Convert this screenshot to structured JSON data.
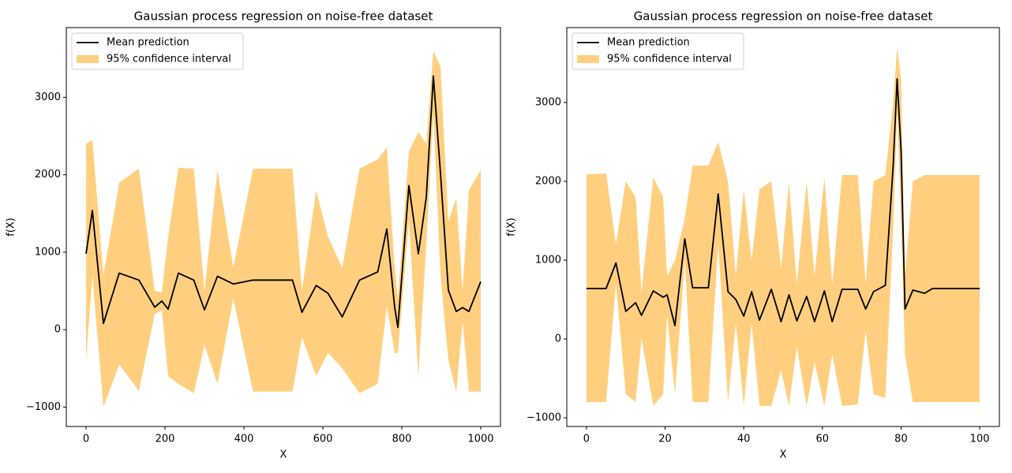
{
  "chart_data": [
    {
      "type": "line",
      "title": "Gaussian process regression on noise-free dataset",
      "x_label": "X",
      "y_label": "f(X)",
      "legend": "upper left",
      "xlim": [
        -50,
        1050
      ],
      "ylim": [
        -1250,
        3900
      ],
      "xticks": [
        0,
        200,
        400,
        600,
        800,
        1000
      ],
      "yticks": [
        {
          "value": -1000,
          "label": "−1000"
        },
        0,
        1000,
        2000,
        3000
      ],
      "x": [
        0,
        16,
        44,
        84,
        134,
        174,
        192,
        208,
        234,
        273,
        300,
        333,
        373,
        423,
        523,
        547,
        583,
        613,
        649,
        693,
        739,
        762,
        782,
        790,
        818,
        842,
        862,
        880,
        898,
        918,
        938,
        954,
        970,
        1000
      ],
      "series": [
        {
          "name": "Mean prediction",
          "color": "#000000",
          "values": [
            980,
            1540,
            80,
            730,
            640,
            290,
            370,
            265,
            730,
            640,
            255,
            690,
            590,
            640,
            640,
            225,
            570,
            470,
            165,
            640,
            745,
            1300,
            285,
            30,
            1860,
            980,
            1710,
            3275,
            2020,
            510,
            235,
            285,
            235,
            620
          ]
        },
        {
          "name": "95% confidence interval",
          "color": "#ffcf7f",
          "upper": [
            2400,
            2450,
            700,
            1900,
            2080,
            500,
            480,
            1200,
            2090,
            2080,
            500,
            2060,
            800,
            2080,
            2080,
            500,
            1800,
            1200,
            800,
            2080,
            2200,
            2350,
            800,
            400,
            2300,
            2550,
            2400,
            3600,
            3400,
            1400,
            1700,
            500,
            1800,
            2060
          ],
          "lower": [
            -400,
            700,
            -1000,
            -450,
            -790,
            200,
            250,
            -600,
            -700,
            -820,
            -200,
            -700,
            400,
            -800,
            -800,
            -100,
            -600,
            -300,
            -500,
            -820,
            -700,
            300,
            -300,
            -300,
            1400,
            -600,
            1100,
            2800,
            700,
            -400,
            -800,
            100,
            -800,
            -800
          ]
        }
      ]
    },
    {
      "type": "line",
      "title": "Gaussian process regression on noise-free dataset",
      "x_label": "X",
      "y_label": "f(X)",
      "legend": "upper left",
      "xlim": [
        -5,
        105
      ],
      "ylim": [
        -1110,
        3950
      ],
      "xticks": [
        0,
        20,
        40,
        60,
        80,
        100
      ],
      "yticks": [
        {
          "value": -1000,
          "label": "−1000"
        },
        0,
        1000,
        2000,
        3000
      ],
      "x": [
        0,
        5,
        7.5,
        10,
        12.5,
        14,
        17,
        19.5,
        20.5,
        22.5,
        25,
        27,
        31,
        33.5,
        36,
        38,
        40,
        42,
        44,
        47,
        49.5,
        51.5,
        53.5,
        56,
        58,
        60.5,
        62.5,
        65,
        69,
        71,
        73,
        76,
        78,
        79,
        80,
        81,
        83,
        86,
        88,
        100
      ],
      "series": [
        {
          "name": "Mean prediction",
          "color": "#000000",
          "values": [
            640,
            640,
            965,
            350,
            460,
            300,
            610,
            530,
            560,
            170,
            1270,
            650,
            650,
            1840,
            600,
            500,
            290,
            600,
            240,
            630,
            220,
            560,
            230,
            540,
            220,
            610,
            220,
            630,
            630,
            380,
            600,
            680,
            2200,
            3300,
            2400,
            380,
            620,
            580,
            640,
            640
          ]
        },
        {
          "name": "95% confidence interval",
          "color": "#ffcf7f",
          "upper": [
            2090,
            2100,
            1200,
            2000,
            1800,
            600,
            2050,
            1800,
            800,
            1000,
            1530,
            2200,
            2200,
            2500,
            2000,
            800,
            1900,
            1000,
            1900,
            2000,
            900,
            2000,
            700,
            2000,
            800,
            2050,
            700,
            2080,
            2080,
            700,
            2000,
            2080,
            3000,
            3700,
            3300,
            800,
            2000,
            2080,
            2080,
            2080
          ],
          "lower": [
            -800,
            -800,
            700,
            -700,
            -800,
            0,
            -850,
            -700,
            300,
            -700,
            1000,
            -800,
            -800,
            1200,
            -800,
            200,
            -850,
            200,
            -850,
            -850,
            -400,
            -850,
            -100,
            -850,
            -300,
            -850,
            -200,
            -850,
            -830,
            100,
            -700,
            -750,
            1400,
            2900,
            1500,
            -200,
            -800,
            -800,
            -800,
            -800
          ]
        }
      ]
    }
  ]
}
